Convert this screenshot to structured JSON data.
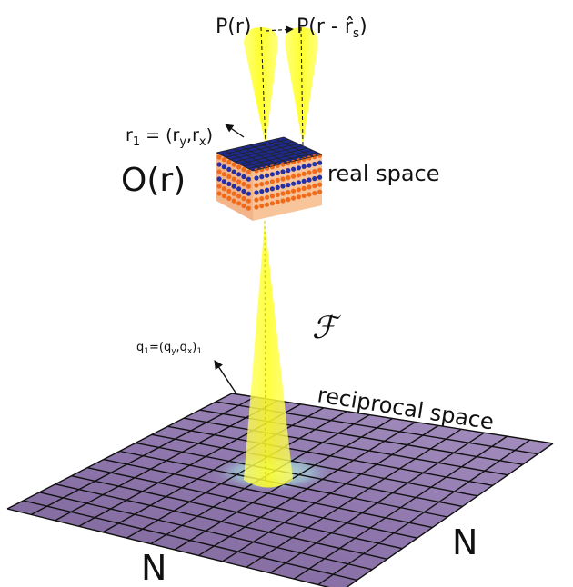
{
  "labels": {
    "probe": "P(r)",
    "probe_shifted_prefix": "P(r - ",
    "probe_shifted_rhat": "r̂",
    "probe_shifted_sub": "s",
    "probe_shifted_suffix": ")",
    "r1_prefix": "r",
    "r1_sub": "1",
    "r1_mid": " = (r",
    "r1_y": "y",
    "r1_comma": ",r",
    "r1_x": "x",
    "r1_close": ")",
    "object": "O(r)",
    "real_space": "real space",
    "fourier": "ℱ",
    "q1_prefix": "q",
    "q1_sub": "1",
    "q1_mid": "=(q",
    "q1_y": "y",
    "q1_comma": ",q",
    "q1_x": "x",
    "q1_close": ")",
    "q1_sub2": "1",
    "reciprocal_space": "reciprocal space",
    "n_left": "N",
    "n_right": "N"
  },
  "colors": {
    "beam": "#ffff33",
    "grid_fill": "#8a6fa6",
    "grid_line": "#111111",
    "atom_orange": "#f06a1a",
    "atom_blue": "#2430a8",
    "plate": "#ffd8a8"
  }
}
